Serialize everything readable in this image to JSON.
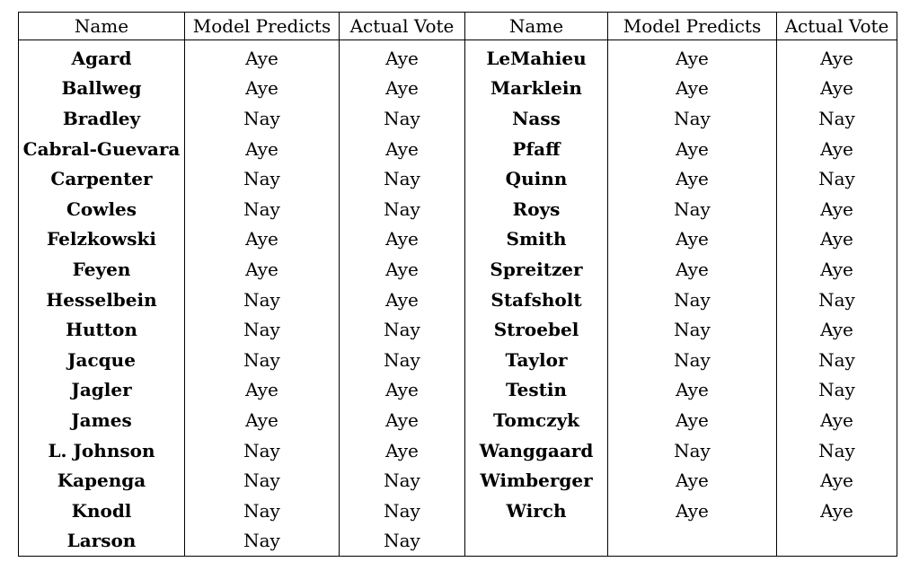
{
  "headers": [
    "Name",
    "Model Predicts",
    "Actual Vote",
    "Name",
    "Model Predicts",
    "Actual Vote"
  ],
  "rows": [
    {
      "name_l": "Agard",
      "pred_l": "Aye",
      "vote_l": "Aye",
      "name_r": "LeMahieu",
      "pred_r": "Aye",
      "vote_r": "Aye"
    },
    {
      "name_l": "Ballweg",
      "pred_l": "Aye",
      "vote_l": "Aye",
      "name_r": "Marklein",
      "pred_r": "Aye",
      "vote_r": "Aye"
    },
    {
      "name_l": "Bradley",
      "pred_l": "Nay",
      "vote_l": "Nay",
      "name_r": "Nass",
      "pred_r": "Nay",
      "vote_r": "Nay"
    },
    {
      "name_l": "Cabral-Guevara",
      "pred_l": "Aye",
      "vote_l": "Aye",
      "name_r": "Pfaff",
      "pred_r": "Aye",
      "vote_r": "Aye"
    },
    {
      "name_l": "Carpenter",
      "pred_l": "Nay",
      "vote_l": "Nay",
      "name_r": "Quinn",
      "pred_r": "Aye",
      "vote_r": "Nay"
    },
    {
      "name_l": "Cowles",
      "pred_l": "Nay",
      "vote_l": "Nay",
      "name_r": "Roys",
      "pred_r": "Nay",
      "vote_r": "Aye"
    },
    {
      "name_l": "Felzkowski",
      "pred_l": "Aye",
      "vote_l": "Aye",
      "name_r": "Smith",
      "pred_r": "Aye",
      "vote_r": "Aye"
    },
    {
      "name_l": "Feyen",
      "pred_l": "Aye",
      "vote_l": "Aye",
      "name_r": "Spreitzer",
      "pred_r": "Aye",
      "vote_r": "Aye"
    },
    {
      "name_l": "Hesselbein",
      "pred_l": "Nay",
      "vote_l": "Aye",
      "name_r": "Stafsholt",
      "pred_r": "Nay",
      "vote_r": "Nay"
    },
    {
      "name_l": "Hutton",
      "pred_l": "Nay",
      "vote_l": "Nay",
      "name_r": "Stroebel",
      "pred_r": "Nay",
      "vote_r": "Aye"
    },
    {
      "name_l": "Jacque",
      "pred_l": "Nay",
      "vote_l": "Nay",
      "name_r": "Taylor",
      "pred_r": "Nay",
      "vote_r": "Nay"
    },
    {
      "name_l": "Jagler",
      "pred_l": "Aye",
      "vote_l": "Aye",
      "name_r": "Testin",
      "pred_r": "Aye",
      "vote_r": "Nay"
    },
    {
      "name_l": "James",
      "pred_l": "Aye",
      "vote_l": "Aye",
      "name_r": "Tomczyk",
      "pred_r": "Aye",
      "vote_r": "Aye"
    },
    {
      "name_l": "L. Johnson",
      "pred_l": "Nay",
      "vote_l": "Aye",
      "name_r": "Wanggaard",
      "pred_r": "Nay",
      "vote_r": "Nay"
    },
    {
      "name_l": "Kapenga",
      "pred_l": "Nay",
      "vote_l": "Nay",
      "name_r": "Wimberger",
      "pred_r": "Aye",
      "vote_r": "Aye"
    },
    {
      "name_l": "Knodl",
      "pred_l": "Nay",
      "vote_l": "Nay",
      "name_r": "Wirch",
      "pred_r": "Aye",
      "vote_r": "Aye"
    },
    {
      "name_l": "Larson",
      "pred_l": "Nay",
      "vote_l": "Nay",
      "name_r": "",
      "pred_r": "",
      "vote_r": ""
    }
  ]
}
